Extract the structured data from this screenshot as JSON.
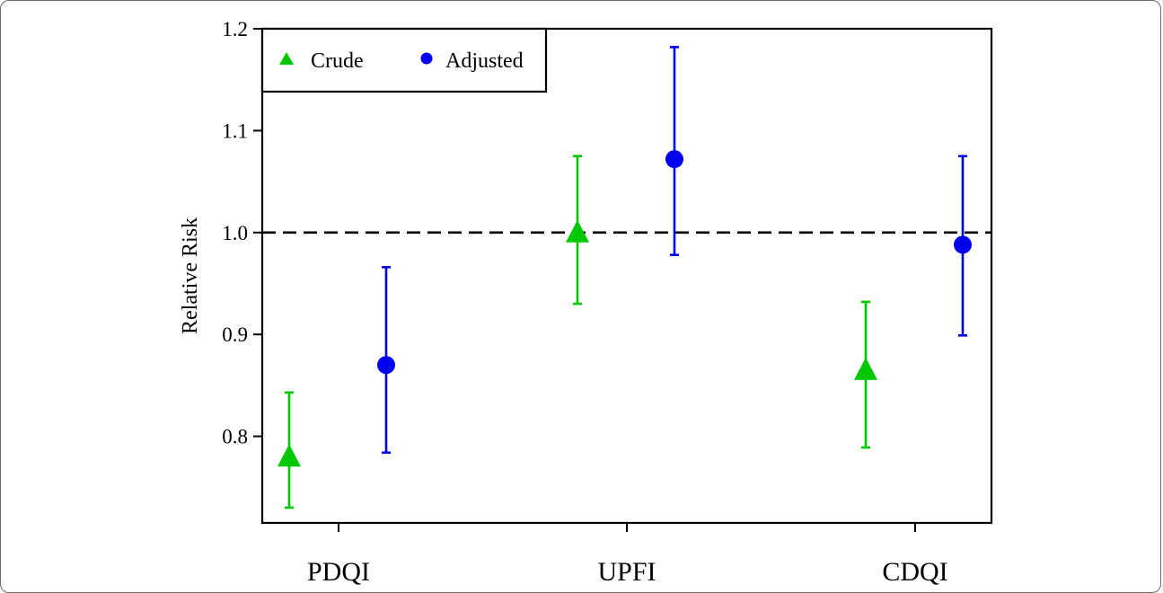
{
  "chart_data": {
    "type": "scatter",
    "title": "",
    "xlabel": "",
    "ylabel": "Relative Risk",
    "ylim": [
      0.715,
      1.2
    ],
    "yticks": [
      0.8,
      0.9,
      1.0,
      1.1,
      1.2
    ],
    "ytick_labels": [
      "0.8",
      "0.9",
      "1.0",
      "1.1",
      "1.2"
    ],
    "categories": [
      "PDQI",
      "UPFI",
      "CDQI"
    ],
    "reference_line": 1.0,
    "grid": false,
    "legend_position": "top-left",
    "series": [
      {
        "name": "Crude",
        "marker": "triangle",
        "color": "#00c800",
        "values": [
          0.78,
          1.0,
          0.865
        ],
        "lower": [
          0.73,
          0.93,
          0.789
        ],
        "upper": [
          0.843,
          1.075,
          0.932
        ]
      },
      {
        "name": "Adjusted",
        "marker": "circle",
        "color": "#0000ee",
        "values": [
          0.87,
          1.072,
          0.988
        ],
        "lower": [
          0.784,
          0.978,
          0.899
        ],
        "upper": [
          0.966,
          1.182,
          1.075
        ]
      }
    ]
  }
}
